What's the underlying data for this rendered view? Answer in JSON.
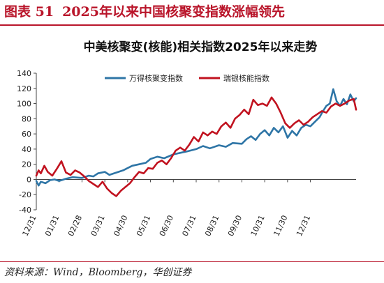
{
  "figure": {
    "label": "图表 51",
    "title": "2025年以来中国核聚变指数涨幅领先"
  },
  "source": "资料来源：Wind，Bloomberg，华创证券",
  "chart_data": {
    "type": "line",
    "title": "中美核聚变(核能)相关指数2025年以来走势",
    "xlabel": "",
    "ylabel": "",
    "ylim": [
      -40,
      140
    ],
    "yticks": [
      -40,
      -20,
      0,
      20,
      40,
      60,
      80,
      100,
      120,
      140
    ],
    "grid": false,
    "legend_position": "top",
    "x_range": [
      0,
      14
    ],
    "x_tick_positions": [
      0,
      1,
      2,
      3,
      4,
      5,
      6,
      7,
      8,
      9,
      10,
      11,
      12
    ],
    "x_tick_labels": [
      "12/31",
      "01/31",
      "02/28",
      "03/31",
      "04/30",
      "05/31",
      "06/30",
      "07/31",
      "08/31",
      "09/30",
      "10/31",
      "11/30",
      "12/31"
    ],
    "series": [
      {
        "name": "万得核聚变指数",
        "color": "#2e75a6",
        "x": [
          0.0,
          0.1,
          0.2,
          0.4,
          0.6,
          0.8,
          1.0,
          1.3,
          1.6,
          2.0,
          2.3,
          2.5,
          2.7,
          3.0,
          3.2,
          3.5,
          3.8,
          4.0,
          4.2,
          4.5,
          4.8,
          5.0,
          5.3,
          5.6,
          6.0,
          6.3,
          6.6,
          7.0,
          7.3,
          7.6,
          8.0,
          8.3,
          8.6,
          9.0,
          9.2,
          9.4,
          9.6,
          9.8,
          10.0,
          10.2,
          10.4,
          10.6,
          10.8,
          11.0,
          11.2,
          11.4,
          11.6,
          11.8,
          12.0,
          12.2,
          12.4,
          12.55,
          12.7,
          12.85,
          13.0,
          13.15,
          13.3,
          13.45,
          13.6,
          13.75,
          13.9,
          14.0
        ],
        "y": [
          -2,
          -8,
          -3,
          -5,
          -1,
          0,
          -2,
          1,
          3,
          2,
          5,
          4,
          8,
          10,
          6,
          9,
          12,
          15,
          18,
          20,
          22,
          27,
          30,
          28,
          33,
          35,
          37,
          40,
          44,
          41,
          45,
          43,
          48,
          47,
          53,
          57,
          52,
          60,
          65,
          58,
          68,
          62,
          70,
          55,
          64,
          58,
          68,
          72,
          70,
          76,
          82,
          90,
          97,
          100,
          119,
          103,
          97,
          106,
          99,
          112,
          103,
          107
        ]
      },
      {
        "name": "瑞银核能指数",
        "color": "#c1121f",
        "x": [
          0.0,
          0.1,
          0.2,
          0.35,
          0.5,
          0.7,
          0.9,
          1.1,
          1.3,
          1.5,
          1.7,
          1.9,
          2.1,
          2.3,
          2.5,
          2.7,
          2.9,
          3.1,
          3.3,
          3.5,
          3.7,
          3.9,
          4.1,
          4.3,
          4.5,
          4.7,
          4.9,
          5.1,
          5.3,
          5.5,
          5.7,
          5.9,
          6.1,
          6.3,
          6.5,
          6.7,
          6.9,
          7.1,
          7.3,
          7.5,
          7.7,
          7.9,
          8.1,
          8.3,
          8.5,
          8.7,
          8.9,
          9.1,
          9.3,
          9.5,
          9.7,
          9.9,
          10.1,
          10.3,
          10.5,
          10.7,
          10.9,
          11.1,
          11.3,
          11.5,
          11.7,
          11.9,
          12.1,
          12.3,
          12.5,
          12.7,
          12.9,
          13.1,
          13.3,
          13.5,
          13.7,
          13.9,
          14.0
        ],
        "y": [
          5,
          12,
          8,
          18,
          10,
          5,
          14,
          24,
          9,
          6,
          12,
          9,
          4,
          -2,
          -6,
          -10,
          -3,
          -12,
          -18,
          -22,
          -15,
          -10,
          -5,
          3,
          10,
          8,
          15,
          14,
          22,
          25,
          20,
          28,
          38,
          42,
          38,
          46,
          56,
          50,
          62,
          58,
          63,
          60,
          70,
          75,
          68,
          80,
          85,
          92,
          86,
          105,
          98,
          100,
          97,
          108,
          100,
          88,
          74,
          68,
          74,
          78,
          72,
          76,
          82,
          86,
          90,
          88,
          96,
          100,
          97,
          100,
          104,
          106,
          92
        ]
      }
    ]
  }
}
